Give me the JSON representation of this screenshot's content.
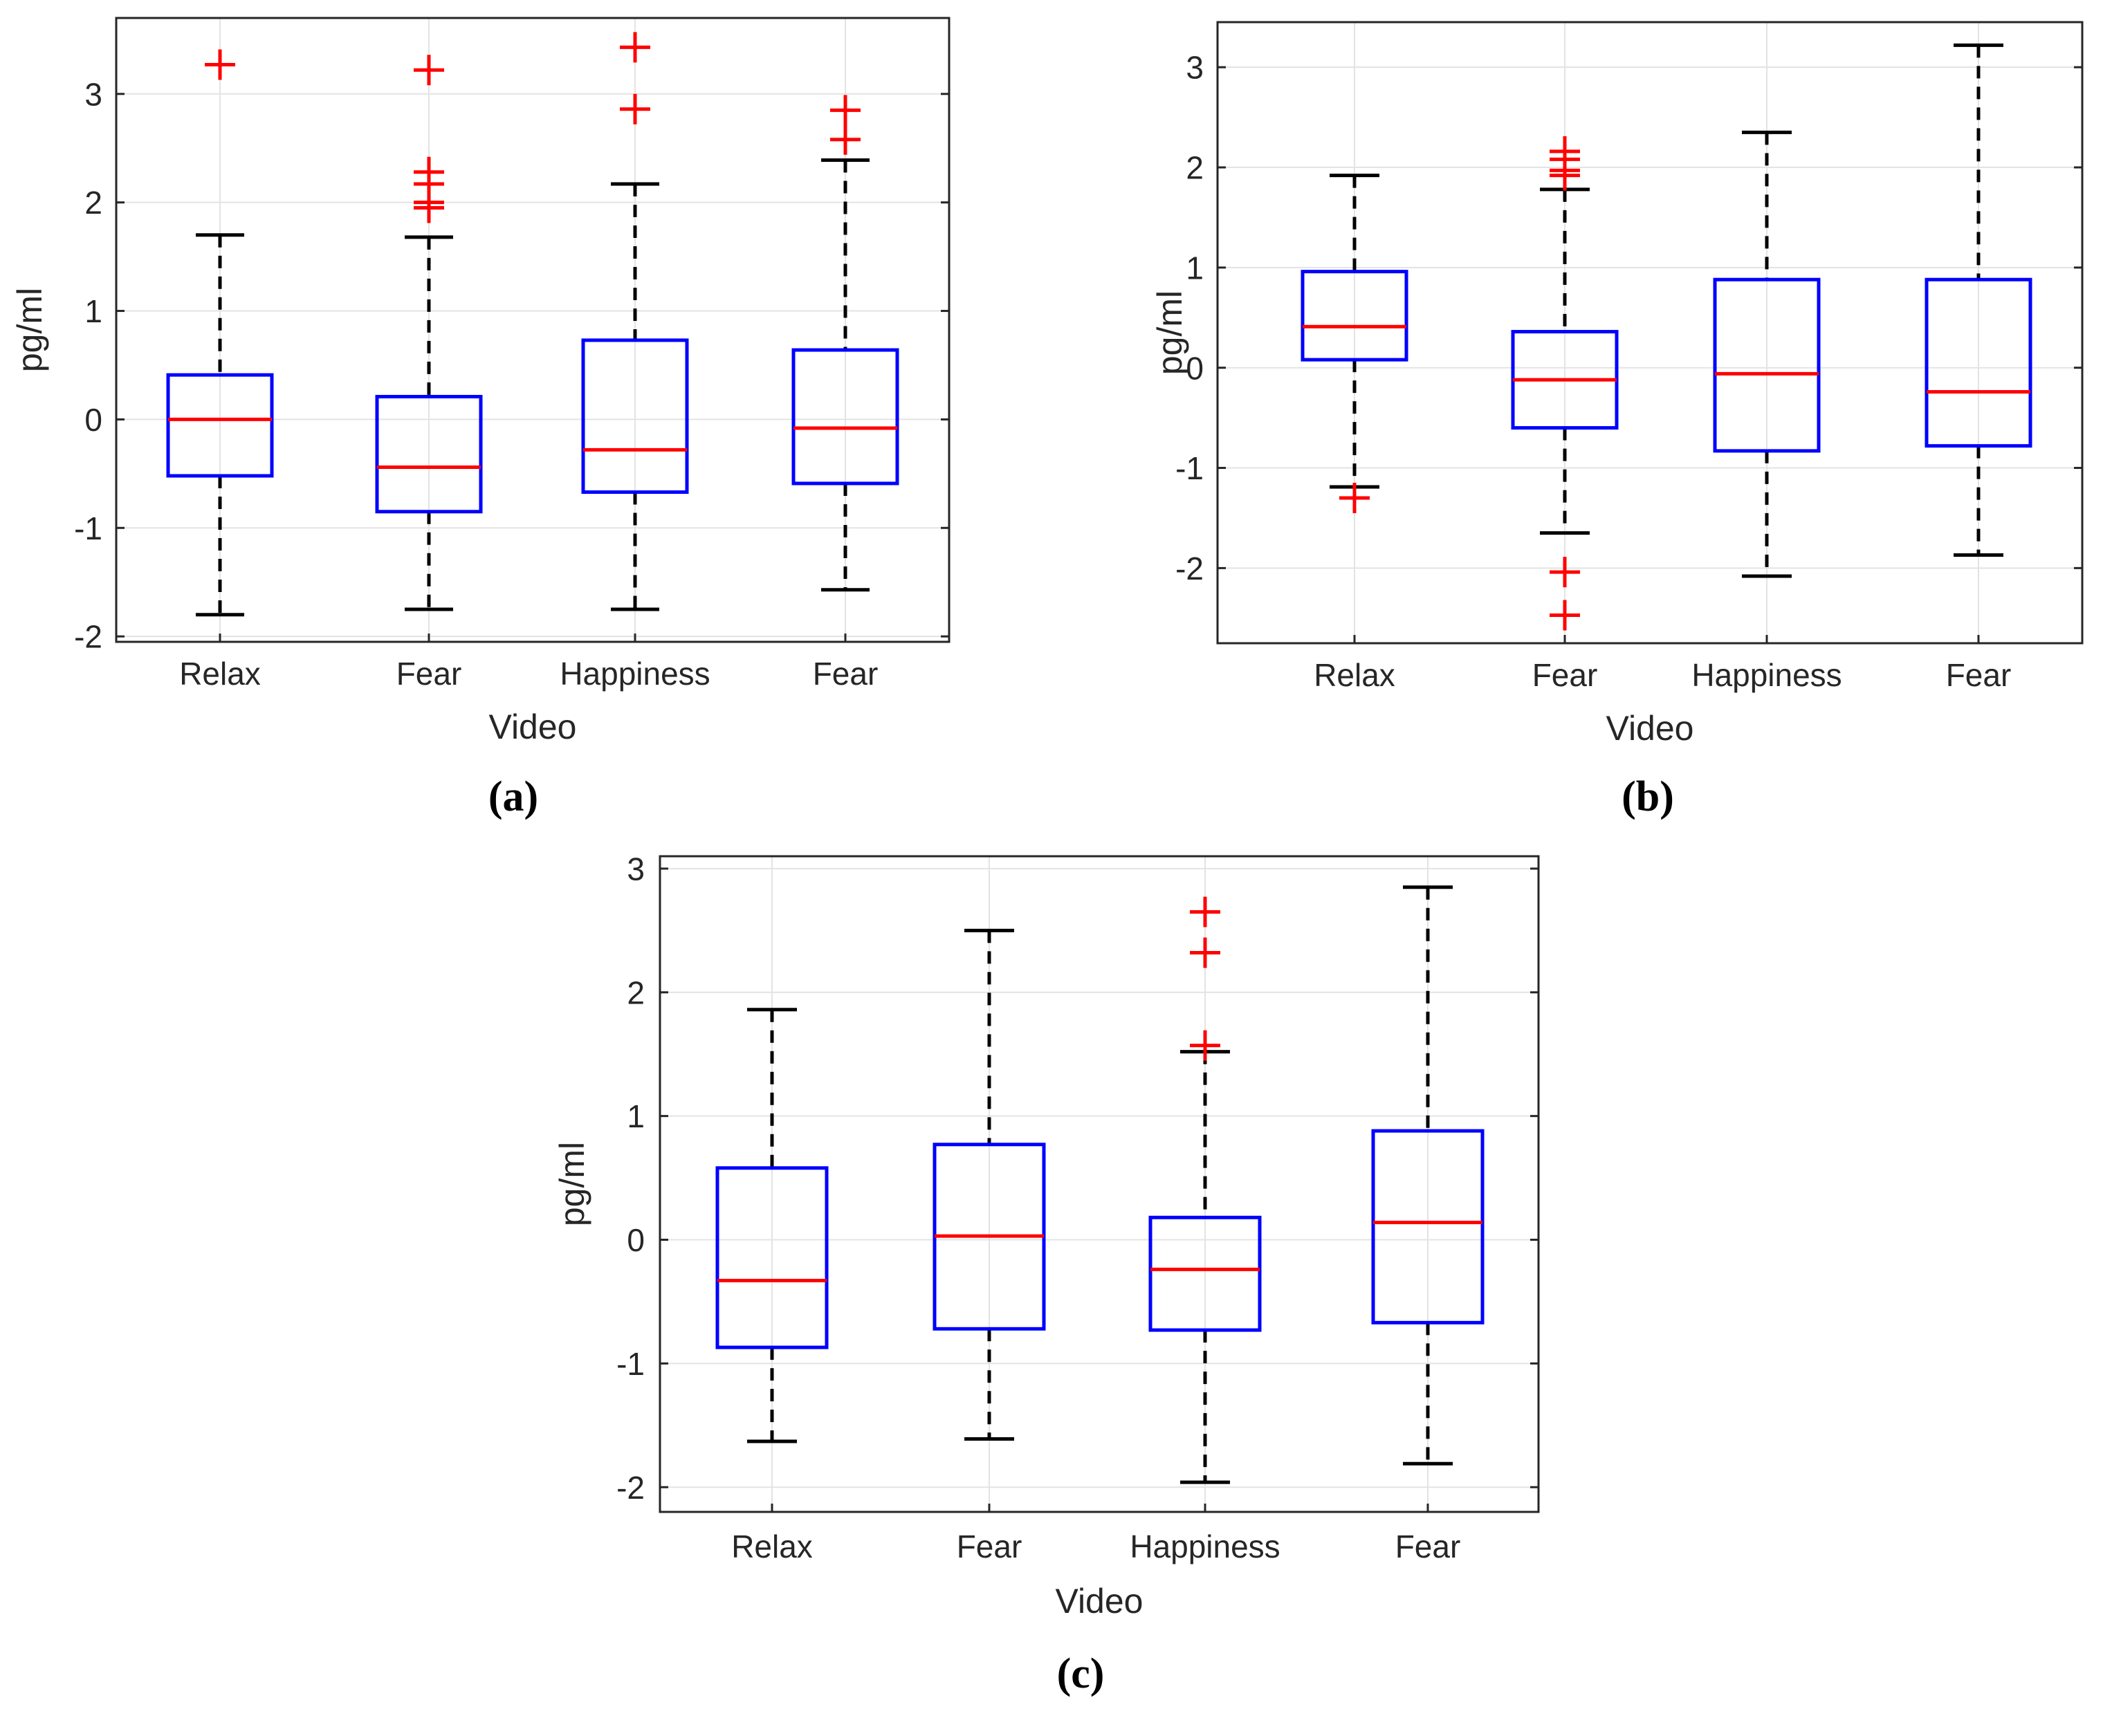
{
  "chart_data": [
    {
      "type": "boxplot",
      "panel_label": "(a)",
      "xlabel": "Video",
      "ylabel": "pg/ml",
      "ylim": [
        -2.05,
        3.7
      ],
      "yticks": [
        -2,
        -1,
        0,
        1,
        2,
        3
      ],
      "grid": true,
      "categories": [
        "Relax",
        "Fear",
        "Happiness",
        "Fear"
      ],
      "boxes": [
        {
          "category": "Relax",
          "lower_whisker": -1.8,
          "q1": -0.52,
          "median": 0.0,
          "q3": 0.41,
          "upper_whisker": 1.7,
          "outliers": [
            3.27
          ]
        },
        {
          "category": "Fear",
          "lower_whisker": -1.75,
          "q1": -0.85,
          "median": -0.44,
          "q3": 0.21,
          "upper_whisker": 1.68,
          "outliers": [
            3.22,
            2.28,
            2.17,
            2.0,
            1.95
          ]
        },
        {
          "category": "Happiness",
          "lower_whisker": -1.75,
          "q1": -0.67,
          "median": -0.28,
          "q3": 0.73,
          "upper_whisker": 2.17,
          "outliers": [
            3.43,
            2.86
          ]
        },
        {
          "category": "Fear",
          "lower_whisker": -1.57,
          "q1": -0.59,
          "median": -0.08,
          "q3": 0.64,
          "upper_whisker": 2.39,
          "outliers": [
            2.85,
            2.58
          ]
        }
      ],
      "colors": {
        "box": "#0000ff",
        "median": "#ff0000",
        "whisker": "#000000",
        "outlier": "#ff0000",
        "grid": "#e3e3e3",
        "axis": "#262626"
      }
    },
    {
      "type": "boxplot",
      "panel_label": "(b)",
      "xlabel": "Video",
      "ylabel": "pg/ml",
      "ylim": [
        -2.75,
        3.45
      ],
      "yticks": [
        -2,
        -1,
        0,
        1,
        2,
        3
      ],
      "grid": true,
      "categories": [
        "Relax",
        "Fear",
        "Happiness",
        "Fear"
      ],
      "boxes": [
        {
          "category": "Relax",
          "lower_whisker": -1.19,
          "q1": 0.08,
          "median": 0.41,
          "q3": 0.96,
          "upper_whisker": 1.92,
          "outliers": [
            -1.3
          ]
        },
        {
          "category": "Fear",
          "lower_whisker": -1.65,
          "q1": -0.6,
          "median": -0.12,
          "q3": 0.36,
          "upper_whisker": 1.78,
          "outliers": [
            2.16,
            2.08,
            1.97,
            1.92,
            -2.04,
            -2.47
          ]
        },
        {
          "category": "Happiness",
          "lower_whisker": -2.08,
          "q1": -0.83,
          "median": -0.06,
          "q3": 0.88,
          "upper_whisker": 2.35,
          "outliers": []
        },
        {
          "category": "Fear",
          "lower_whisker": -1.87,
          "q1": -0.78,
          "median": -0.24,
          "q3": 0.88,
          "upper_whisker": 3.22,
          "outliers": []
        }
      ],
      "colors": {
        "box": "#0000ff",
        "median": "#ff0000",
        "whisker": "#000000",
        "outlier": "#ff0000",
        "grid": "#e3e3e3",
        "axis": "#262626"
      }
    },
    {
      "type": "boxplot",
      "panel_label": "(c)",
      "xlabel": "Video",
      "ylabel": "pg/ml",
      "ylim": [
        -2.2,
        3.1
      ],
      "yticks": [
        -2,
        -1,
        0,
        1,
        2,
        3
      ],
      "grid": true,
      "categories": [
        "Relax",
        "Fear",
        "Happiness",
        "Fear"
      ],
      "boxes": [
        {
          "category": "Relax",
          "lower_whisker": -1.63,
          "q1": -0.87,
          "median": -0.33,
          "q3": 0.58,
          "upper_whisker": 1.86,
          "outliers": []
        },
        {
          "category": "Fear",
          "lower_whisker": -1.61,
          "q1": -0.72,
          "median": 0.03,
          "q3": 0.77,
          "upper_whisker": 2.5,
          "outliers": []
        },
        {
          "category": "Happiness",
          "lower_whisker": -1.96,
          "q1": -0.73,
          "median": -0.24,
          "q3": 0.18,
          "upper_whisker": 1.52,
          "outliers": [
            2.65,
            2.32,
            1.57
          ]
        },
        {
          "category": "Fear",
          "lower_whisker": -1.81,
          "q1": -0.67,
          "median": 0.14,
          "q3": 0.88,
          "upper_whisker": 2.85,
          "outliers": []
        }
      ],
      "colors": {
        "box": "#0000ff",
        "median": "#ff0000",
        "whisker": "#000000",
        "outlier": "#ff0000",
        "grid": "#e3e3e3",
        "axis": "#262626"
      }
    }
  ]
}
